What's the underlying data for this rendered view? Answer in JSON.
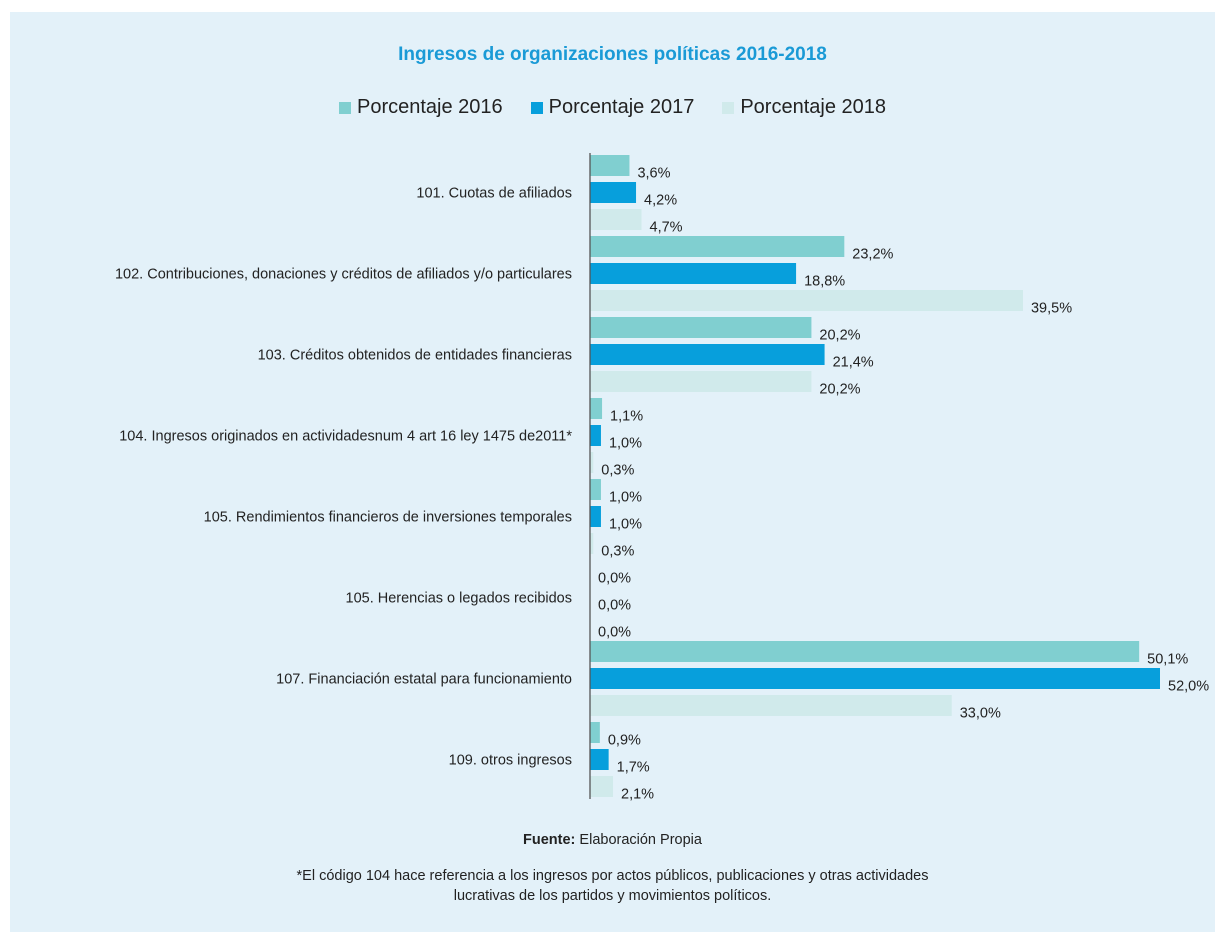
{
  "chart_data": {
    "type": "bar",
    "orientation": "horizontal",
    "title": "Ingresos de organizaciones políticas 2016-2018",
    "legend_position": "top",
    "grid": false,
    "xlim": [
      0,
      52
    ],
    "categories": [
      "101. Cuotas de afiliados",
      "102. Contribuciones, donaciones y créditos de afiliados y/o particulares",
      "103. Créditos obtenidos de entidades financieras",
      "104. Ingresos originados en actividadesnum 4 art 16 ley 1475 de2011*",
      "105.  Rendimientos financieros de inversiones temporales",
      "105. Herencias o legados recibidos",
      "107. Financiación estatal para funcionamiento",
      "109. otros ingresos"
    ],
    "series": [
      {
        "name": "Porcentaje 2016",
        "color": "#80cfd0",
        "values": [
          3.6,
          23.2,
          20.2,
          1.1,
          1.0,
          0.0,
          50.1,
          0.9
        ],
        "labels": [
          "3,6%",
          "23,2%",
          "20,2%",
          "1,1%",
          "1,0%",
          "0,0%",
          "50,1%",
          "0,9%"
        ]
      },
      {
        "name": "Porcentaje 2017",
        "color": "#079fdc",
        "values": [
          4.2,
          18.8,
          21.4,
          1.0,
          1.0,
          0.0,
          52.0,
          1.7
        ],
        "labels": [
          "4,2%",
          "18,8%",
          "21,4%",
          "1,0%",
          "1,0%",
          "0,0%",
          "52,0%",
          "1,7%"
        ]
      },
      {
        "name": "Porcentaje 2018",
        "color": "#d0eaeb",
        "values": [
          4.7,
          39.5,
          20.2,
          0.3,
          0.3,
          0.0,
          33.0,
          2.1
        ],
        "labels": [
          "4,7%",
          "39,5%",
          "20,2%",
          "0,3%",
          "0,3%",
          "0,0%",
          "33,0%",
          "2,1%"
        ]
      }
    ]
  },
  "source": {
    "label": "Fuente:",
    "text": "Elaboración Propia"
  },
  "footnote": {
    "line1": "*El código 104 hace referencia a los ingresos por actos públicos, publicaciones y otras actividades",
    "line2": "lucrativas de los partidos y movimientos políticos."
  }
}
